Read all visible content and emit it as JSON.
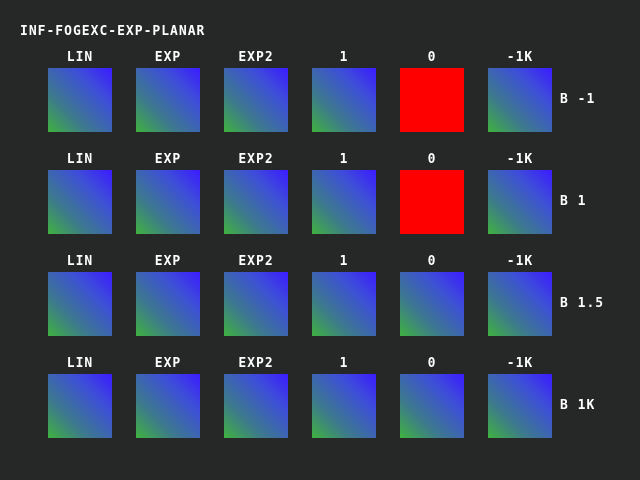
{
  "title": "INF-FOGEXC-EXP-PLANAR",
  "colors": {
    "background": "#262827",
    "text": "#ffffff",
    "failure_tile": "#ff0000",
    "gradient_green": "#3fb23f",
    "gradient_blue": "#3c1cff"
  },
  "rows": [
    {
      "label": "B -1",
      "cells": [
        {
          "label": "LIN",
          "state": "gradient"
        },
        {
          "label": "EXP",
          "state": "gradient"
        },
        {
          "label": "EXP2",
          "state": "gradient"
        },
        {
          "label": "1",
          "state": "gradient"
        },
        {
          "label": "0",
          "state": "red"
        },
        {
          "label": "-1K",
          "state": "gradient"
        }
      ]
    },
    {
      "label": "B 1",
      "cells": [
        {
          "label": "LIN",
          "state": "gradient"
        },
        {
          "label": "EXP",
          "state": "gradient"
        },
        {
          "label": "EXP2",
          "state": "gradient"
        },
        {
          "label": "1",
          "state": "gradient"
        },
        {
          "label": "0",
          "state": "red"
        },
        {
          "label": "-1K",
          "state": "gradient"
        }
      ]
    },
    {
      "label": "B 1.5",
      "cells": [
        {
          "label": "LIN",
          "state": "gradient"
        },
        {
          "label": "EXP",
          "state": "gradient"
        },
        {
          "label": "EXP2",
          "state": "gradient"
        },
        {
          "label": "1",
          "state": "gradient"
        },
        {
          "label": "0",
          "state": "gradient"
        },
        {
          "label": "-1K",
          "state": "gradient"
        }
      ]
    },
    {
      "label": "B 1K",
      "cells": [
        {
          "label": "LIN",
          "state": "gradient"
        },
        {
          "label": "EXP",
          "state": "gradient"
        },
        {
          "label": "EXP2",
          "state": "gradient"
        },
        {
          "label": "1",
          "state": "gradient"
        },
        {
          "label": "0",
          "state": "gradient"
        },
        {
          "label": "-1K",
          "state": "gradient"
        }
      ]
    }
  ]
}
